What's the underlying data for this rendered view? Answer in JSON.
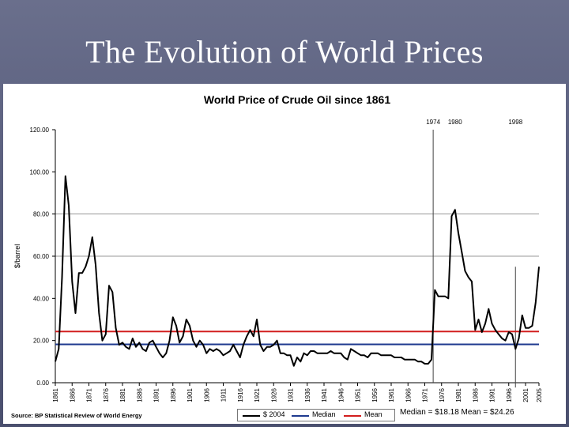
{
  "slide": {
    "title": "The Evolution of World Prices"
  },
  "chart_data": {
    "type": "line",
    "title": "World Price of Crude Oil since 1861",
    "ylabel": "$/barrel",
    "xlabel": "",
    "ylim": [
      0,
      120
    ],
    "xlim": [
      1861,
      2005
    ],
    "y_ticks": [
      "0.00",
      "20.00",
      "40.00",
      "60.00",
      "80.00",
      "100.00",
      "120.00"
    ],
    "x_ticks": [
      1861,
      1866,
      1871,
      1876,
      1881,
      1886,
      1891,
      1896,
      1901,
      1906,
      1911,
      1916,
      1921,
      1926,
      1931,
      1936,
      1941,
      1946,
      1951,
      1956,
      1961,
      1966,
      1971,
      1976,
      1981,
      1986,
      1991,
      1996,
      2001,
      2005
    ],
    "gridlines": [
      80,
      60
    ],
    "series": [
      {
        "name": "$ 2004",
        "color": "#000000",
        "x": [
          1861,
          1862,
          1863,
          1864,
          1865,
          1866,
          1867,
          1868,
          1869,
          1870,
          1871,
          1872,
          1873,
          1874,
          1875,
          1876,
          1877,
          1878,
          1879,
          1880,
          1881,
          1882,
          1883,
          1884,
          1885,
          1886,
          1887,
          1888,
          1889,
          1890,
          1891,
          1892,
          1893,
          1894,
          1895,
          1896,
          1897,
          1898,
          1899,
          1900,
          1901,
          1902,
          1903,
          1904,
          1905,
          1906,
          1907,
          1908,
          1909,
          1910,
          1911,
          1912,
          1913,
          1914,
          1915,
          1916,
          1917,
          1918,
          1919,
          1920,
          1921,
          1922,
          1923,
          1924,
          1925,
          1926,
          1927,
          1928,
          1929,
          1930,
          1931,
          1932,
          1933,
          1934,
          1935,
          1936,
          1937,
          1938,
          1939,
          1940,
          1941,
          1942,
          1943,
          1944,
          1945,
          1946,
          1947,
          1948,
          1949,
          1950,
          1951,
          1952,
          1953,
          1954,
          1955,
          1956,
          1957,
          1958,
          1959,
          1960,
          1961,
          1962,
          1963,
          1964,
          1965,
          1966,
          1967,
          1968,
          1969,
          1970,
          1971,
          1972,
          1973,
          1974,
          1975,
          1976,
          1977,
          1978,
          1979,
          1980,
          1981,
          1982,
          1983,
          1984,
          1985,
          1986,
          1987,
          1988,
          1989,
          1990,
          1991,
          1992,
          1993,
          1994,
          1995,
          1996,
          1997,
          1998,
          1999,
          2000,
          2001,
          2002,
          2003,
          2004,
          2005
        ],
        "values": [
          10,
          16,
          50,
          98,
          84,
          48,
          33,
          52,
          52,
          55,
          60,
          69,
          56,
          33,
          20,
          23,
          46,
          43,
          26,
          18,
          19,
          17,
          16,
          21,
          17,
          19,
          16,
          15,
          19,
          20,
          17,
          14,
          12,
          14,
          20,
          31,
          27,
          19,
          22,
          30,
          27,
          20,
          17,
          20,
          18,
          14,
          16,
          15,
          16,
          15,
          13,
          14,
          15,
          18,
          15,
          12,
          18,
          22,
          25,
          22,
          30,
          18,
          15,
          17,
          17,
          18,
          20,
          14,
          14,
          13,
          13,
          8,
          12,
          10,
          14,
          13,
          15,
          15,
          14,
          14,
          14,
          14,
          15,
          14,
          14,
          14,
          12,
          11,
          16,
          15,
          14,
          13,
          13,
          12,
          14,
          14,
          14,
          13,
          13,
          13,
          13,
          12,
          12,
          12,
          11,
          11,
          11,
          11,
          10,
          10,
          9,
          9,
          11,
          44,
          41,
          41,
          41,
          40,
          79,
          82,
          71,
          62,
          53,
          50,
          48,
          25,
          30,
          24,
          28,
          35,
          28,
          25,
          23,
          21,
          20,
          24,
          23,
          16,
          21,
          32,
          26,
          26,
          27,
          38,
          55
        ]
      },
      {
        "name": "Median",
        "color": "#1f3a8f",
        "values": [
          18.18
        ]
      },
      {
        "name": "Mean",
        "color": "#d21e1e",
        "values": [
          24.26
        ]
      }
    ],
    "annotations": [
      {
        "label": "1974",
        "x": 1973.5
      },
      {
        "label": "1980",
        "x": 1980
      },
      {
        "label": "1998",
        "x": 1998
      }
    ],
    "source": "Source: BP Statistical Review of World Energy",
    "stats_note": "Median = $18.18 Mean = $24.26"
  }
}
